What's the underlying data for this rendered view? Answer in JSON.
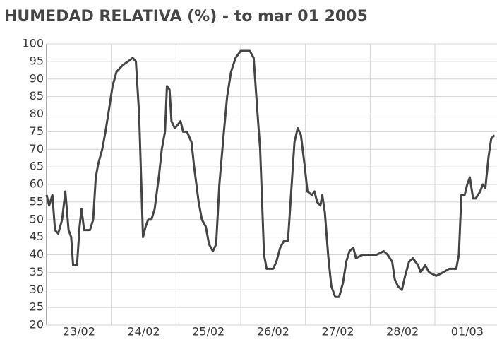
{
  "chart_data": {
    "type": "line",
    "title": "HUMEDAD RELATIVA (%) - to mar 01 2005",
    "x": [
      0,
      0.04,
      0.09,
      0.13,
      0.18,
      0.24,
      0.29,
      0.34,
      0.38,
      0.41,
      0.47,
      0.51,
      0.54,
      0.58,
      0.67,
      0.72,
      0.76,
      0.8,
      0.86,
      0.91,
      0.97,
      1.02,
      1.08,
      1.13,
      1.18,
      1.26,
      1.33,
      1.38,
      1.43,
      1.49,
      1.53,
      1.57,
      1.62,
      1.67,
      1.74,
      1.78,
      1.83,
      1.86,
      1.9,
      1.93,
      1.98,
      2.03,
      2.07,
      2.11,
      2.17,
      2.24,
      2.28,
      2.35,
      2.4,
      2.46,
      2.51,
      2.57,
      2.62,
      2.67,
      2.74,
      2.79,
      2.85,
      2.92,
      3.0,
      3.14,
      3.2,
      3.26,
      3.3,
      3.36,
      3.4,
      3.5,
      3.55,
      3.61,
      3.67,
      3.73,
      3.78,
      3.83,
      3.88,
      3.93,
      3.99,
      4.03,
      4.1,
      4.14,
      4.18,
      4.23,
      4.26,
      4.3,
      4.35,
      4.4,
      4.46,
      4.52,
      4.58,
      4.63,
      4.68,
      4.74,
      4.78,
      4.88,
      4.99,
      5.1,
      5.21,
      5.27,
      5.34,
      5.38,
      5.43,
      5.49,
      5.54,
      5.6,
      5.66,
      5.74,
      5.78,
      5.85,
      5.91,
      6.02,
      6.13,
      6.22,
      6.33,
      6.37,
      6.41,
      6.46,
      6.5,
      6.54,
      6.59,
      6.63,
      6.7,
      6.74,
      6.78,
      6.83,
      6.87,
      6.92
    ],
    "series": [
      {
        "name": "HUMEDAD RELATIVA (%)",
        "color": "#454545",
        "values": [
          57,
          54,
          57,
          47,
          46,
          50,
          58,
          47,
          45,
          37,
          37,
          48,
          53,
          47,
          47,
          50,
          62,
          66,
          70,
          75,
          82,
          88,
          92,
          93,
          94,
          95,
          96,
          95,
          80,
          45,
          48,
          50,
          50,
          53,
          63,
          70,
          75,
          88,
          87,
          78,
          76,
          77,
          78,
          75,
          75,
          72,
          65,
          55,
          50,
          48,
          43,
          41,
          43,
          60,
          75,
          85,
          92,
          96,
          98,
          98,
          96,
          80,
          70,
          40,
          36,
          36,
          38,
          42,
          44,
          44,
          58,
          72,
          76,
          74,
          65,
          58,
          57,
          58,
          55,
          54,
          57,
          52,
          40,
          31,
          28,
          28,
          32,
          38,
          41,
          42,
          39,
          40,
          40,
          40,
          41,
          40,
          38,
          33,
          31,
          30,
          34,
          38,
          39,
          37,
          35,
          37,
          35,
          34,
          35,
          36,
          36,
          40,
          57,
          57,
          60,
          62,
          56,
          56,
          58,
          60,
          59,
          68,
          73,
          74
        ]
      }
    ],
    "xlim": [
      0,
      6.96
    ],
    "xticks": [
      {
        "value": 0.5,
        "label": "23/02"
      },
      {
        "value": 1.5,
        "label": "24/02"
      },
      {
        "value": 2.5,
        "label": "25/02"
      },
      {
        "value": 3.5,
        "label": "26/02"
      },
      {
        "value": 4.5,
        "label": "27/02"
      },
      {
        "value": 5.5,
        "label": "28/02"
      },
      {
        "value": 6.5,
        "label": "01/03"
      }
    ],
    "ylim": [
      20,
      100
    ],
    "yticks": [
      20,
      25,
      30,
      35,
      40,
      45,
      50,
      55,
      60,
      65,
      70,
      75,
      80,
      85,
      90,
      95,
      100
    ],
    "grid": true
  }
}
